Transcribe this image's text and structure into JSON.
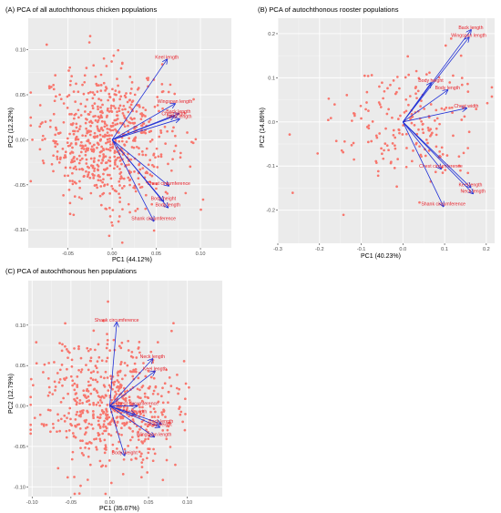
{
  "colors": {
    "panel_bg": "#ebebeb",
    "grid_major": "#ffffff",
    "grid_minor": "#f5f5f5",
    "point": "#f8766d",
    "arrow": "#1f2fd6",
    "label": "#e8202a"
  },
  "chart_data": [
    {
      "type": "scatter",
      "title": "(A) PCA of all autochthonous chicken populations",
      "xlabel": "PC1 (44.12%)",
      "ylabel": "PC2 (12.32%)",
      "xlim": [
        -0.095,
        0.135
      ],
      "ylim": [
        -0.12,
        0.135
      ],
      "x_ticks": [
        -0.05,
        0.0,
        0.05,
        0.1
      ],
      "x_tick_labels": [
        "-0.05",
        "0.00",
        "0.05",
        "0.10"
      ],
      "y_ticks": [
        -0.1,
        -0.05,
        0.0,
        0.05,
        0.1
      ],
      "y_tick_labels": [
        "-0.10",
        "-0.05",
        "0.00",
        "0.05",
        "0.10"
      ],
      "n_points": 700,
      "point_spread": {
        "x_mean": -0.005,
        "x_sd": 0.036,
        "y_mean": 0.002,
        "y_sd": 0.038
      },
      "loadings": [
        {
          "label": "Keel length",
          "x": 0.062,
          "y": 0.089
        },
        {
          "label": "Wingspan length",
          "x": 0.071,
          "y": 0.04
        },
        {
          "label": "Back length",
          "x": 0.075,
          "y": 0.029
        },
        {
          "label": "Chest width",
          "x": 0.07,
          "y": 0.026
        },
        {
          "label": "Neck length",
          "x": 0.076,
          "y": 0.023
        },
        {
          "label": "Chest circumference",
          "x": 0.064,
          "y": -0.051
        },
        {
          "label": "Body height",
          "x": 0.058,
          "y": -0.068
        },
        {
          "label": "Body length",
          "x": 0.063,
          "y": -0.075
        },
        {
          "label": "Shank circumference",
          "x": 0.047,
          "y": -0.09
        }
      ]
    },
    {
      "type": "scatter",
      "title": "(B) PCA of autochthonous rooster populations",
      "xlabel": "PC1 (40.23%)",
      "ylabel": "PC2 (14.86%)",
      "xlim": [
        -0.3,
        0.22
      ],
      "ylim": [
        -0.275,
        0.235
      ],
      "x_ticks": [
        -0.3,
        -0.2,
        -0.1,
        0.0,
        0.1,
        0.2
      ],
      "x_tick_labels": [
        "-0.3",
        "-0.2",
        "-0.1",
        "0.0",
        "0.1",
        "0.2"
      ],
      "y_ticks": [
        -0.2,
        -0.1,
        0.0,
        0.1,
        0.2
      ],
      "y_tick_labels": [
        "-0.2",
        "-0.1",
        "0.0",
        "0.1",
        "0.2"
      ],
      "n_points": 200,
      "point_spread": {
        "x_mean": 0.01,
        "x_sd": 0.085,
        "y_mean": 0.0,
        "y_sd": 0.07
      },
      "loadings": [
        {
          "label": "Back length",
          "x": 0.163,
          "y": 0.208
        },
        {
          "label": "Wingspan length",
          "x": 0.158,
          "y": 0.191
        },
        {
          "label": "Body height",
          "x": 0.067,
          "y": 0.088
        },
        {
          "label": "Body length",
          "x": 0.107,
          "y": 0.072
        },
        {
          "label": "Chest width",
          "x": 0.152,
          "y": 0.031
        },
        {
          "label": "Chest circumference",
          "x": 0.091,
          "y": -0.106
        },
        {
          "label": "Keel length",
          "x": 0.162,
          "y": -0.148
        },
        {
          "label": "Neck length",
          "x": 0.168,
          "y": -0.162
        },
        {
          "label": "Shank circumference",
          "x": 0.097,
          "y": -0.191
        }
      ]
    },
    {
      "type": "scatter",
      "title": "(C) PCA of autochthonous hen populations",
      "xlabel": "PC1 (35.07%)",
      "ylabel": "PC2 (12.79%)",
      "xlim": [
        -0.105,
        0.145
      ],
      "ylim": [
        -0.112,
        0.155
      ],
      "x_ticks": [
        -0.1,
        -0.05,
        0.0,
        0.05,
        0.1
      ],
      "x_tick_labels": [
        "-0.10",
        "-0.05",
        "0.00",
        "0.05",
        "0.10"
      ],
      "y_ticks": [
        -0.1,
        -0.05,
        0.0,
        0.05,
        0.1
      ],
      "y_tick_labels": [
        "-0.10",
        "-0.05",
        "0.00",
        "0.05",
        "0.10"
      ],
      "n_points": 600,
      "point_spread": {
        "x_mean": 0.0,
        "x_sd": 0.044,
        "y_mean": 0.0,
        "y_sd": 0.04
      },
      "loadings": [
        {
          "label": "Shank circumference",
          "x": 0.009,
          "y": 0.103
        },
        {
          "label": "Neck length",
          "x": 0.055,
          "y": 0.058
        },
        {
          "label": "Keel length",
          "x": 0.058,
          "y": 0.043
        },
        {
          "label": "Chest circumference",
          "x": 0.035,
          "y": 0.0
        },
        {
          "label": "Chest width",
          "x": 0.032,
          "y": -0.01
        },
        {
          "label": "Back length",
          "x": 0.066,
          "y": -0.022
        },
        {
          "label": "Body height",
          "x": 0.064,
          "y": -0.026
        },
        {
          "label": "Wingspan length",
          "x": 0.057,
          "y": -0.038
        },
        {
          "label": "Body weight",
          "x": 0.019,
          "y": -0.061
        }
      ]
    }
  ]
}
